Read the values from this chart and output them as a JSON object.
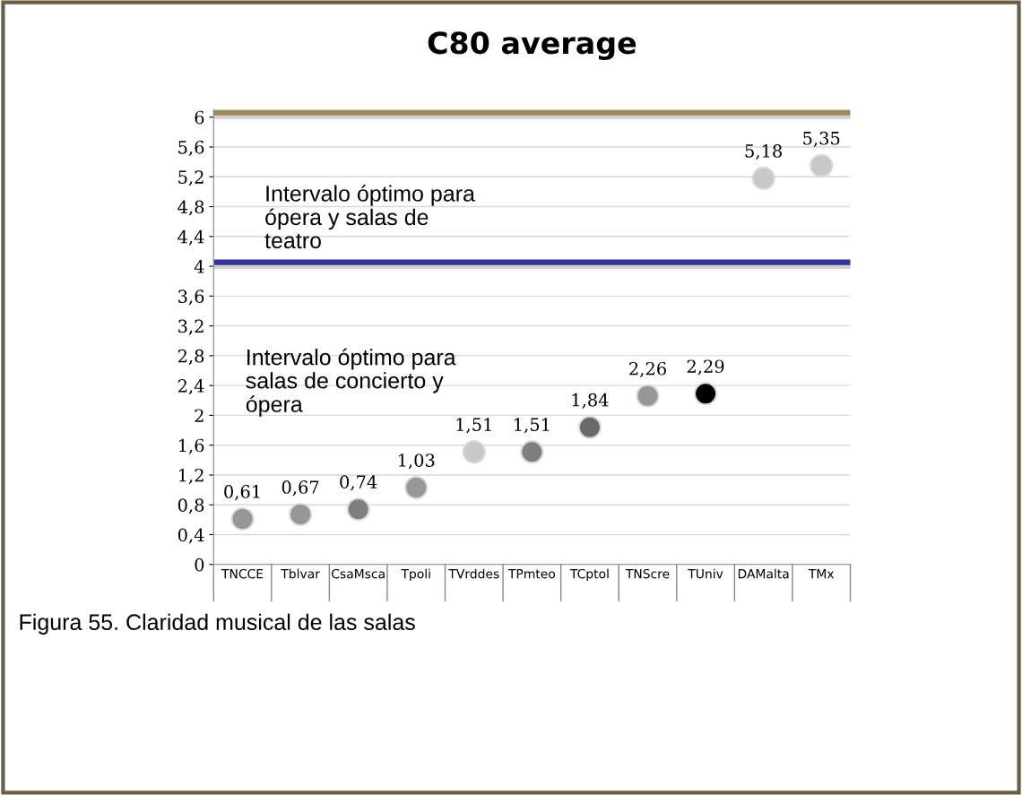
{
  "chart_data": {
    "type": "scatter",
    "title": "C80 average",
    "categories": [
      "TNCCE",
      "Tblvar",
      "CsaMsca",
      "Tpoli",
      "TVrddes",
      "TPmteo",
      "TCptol",
      "TNScre",
      "TUniv",
      "DAMalta",
      "TMx"
    ],
    "values": [
      0.61,
      0.67,
      0.74,
      1.03,
      1.51,
      1.51,
      1.84,
      2.26,
      2.29,
      5.18,
      5.35
    ],
    "value_labels": [
      "0,61",
      "0,67",
      "0,74",
      "1,03",
      "1,51",
      "1,51",
      "1,84",
      "2,26",
      "2,29",
      "5,18",
      "5,35"
    ],
    "colors": [
      "#969696",
      "#969696",
      "#7f7f7f",
      "#969696",
      "#c8c8c8",
      "#7f7f7f",
      "#6a6a6a",
      "#969696",
      "#000000",
      "#c8c8c8",
      "#c8c8c8"
    ],
    "marker": "circle",
    "ylim": [
      0,
      6.1
    ],
    "yticks": [
      0,
      {
        "value": 0.4,
        "label": "0,4"
      },
      {
        "value": 0.8,
        "label": "0,8"
      },
      {
        "value": 1.2,
        "label": "1,2"
      },
      {
        "value": 1.6,
        "label": "1,6"
      },
      2,
      {
        "value": 2.4,
        "label": "2,4"
      },
      {
        "value": 2.8,
        "label": "2,8"
      },
      {
        "value": 3.2,
        "label": "3,2"
      },
      {
        "value": 3.6,
        "label": "3,6"
      },
      4,
      {
        "value": 4.4,
        "label": "4,4"
      },
      {
        "value": 4.8,
        "label": "4,8"
      },
      {
        "value": 5.2,
        "label": "5,2"
      },
      {
        "value": 5.6,
        "label": "5,6"
      },
      6
    ],
    "grid": "y",
    "ref_lines": [
      {
        "axis": "y",
        "value": 6.06,
        "color": "#9c8b5e",
        "line_style": "solid"
      },
      {
        "axis": "y",
        "value": 4.05,
        "color": "#333399",
        "line_style": "solid"
      }
    ],
    "annotations": [
      "Intervalo óptimo para\nópera y salas de\nteatro",
      "Intervalo óptimo para\nsalas de concierto y\nópera",
      "Figura 55. Claridad musical de las salas"
    ]
  }
}
